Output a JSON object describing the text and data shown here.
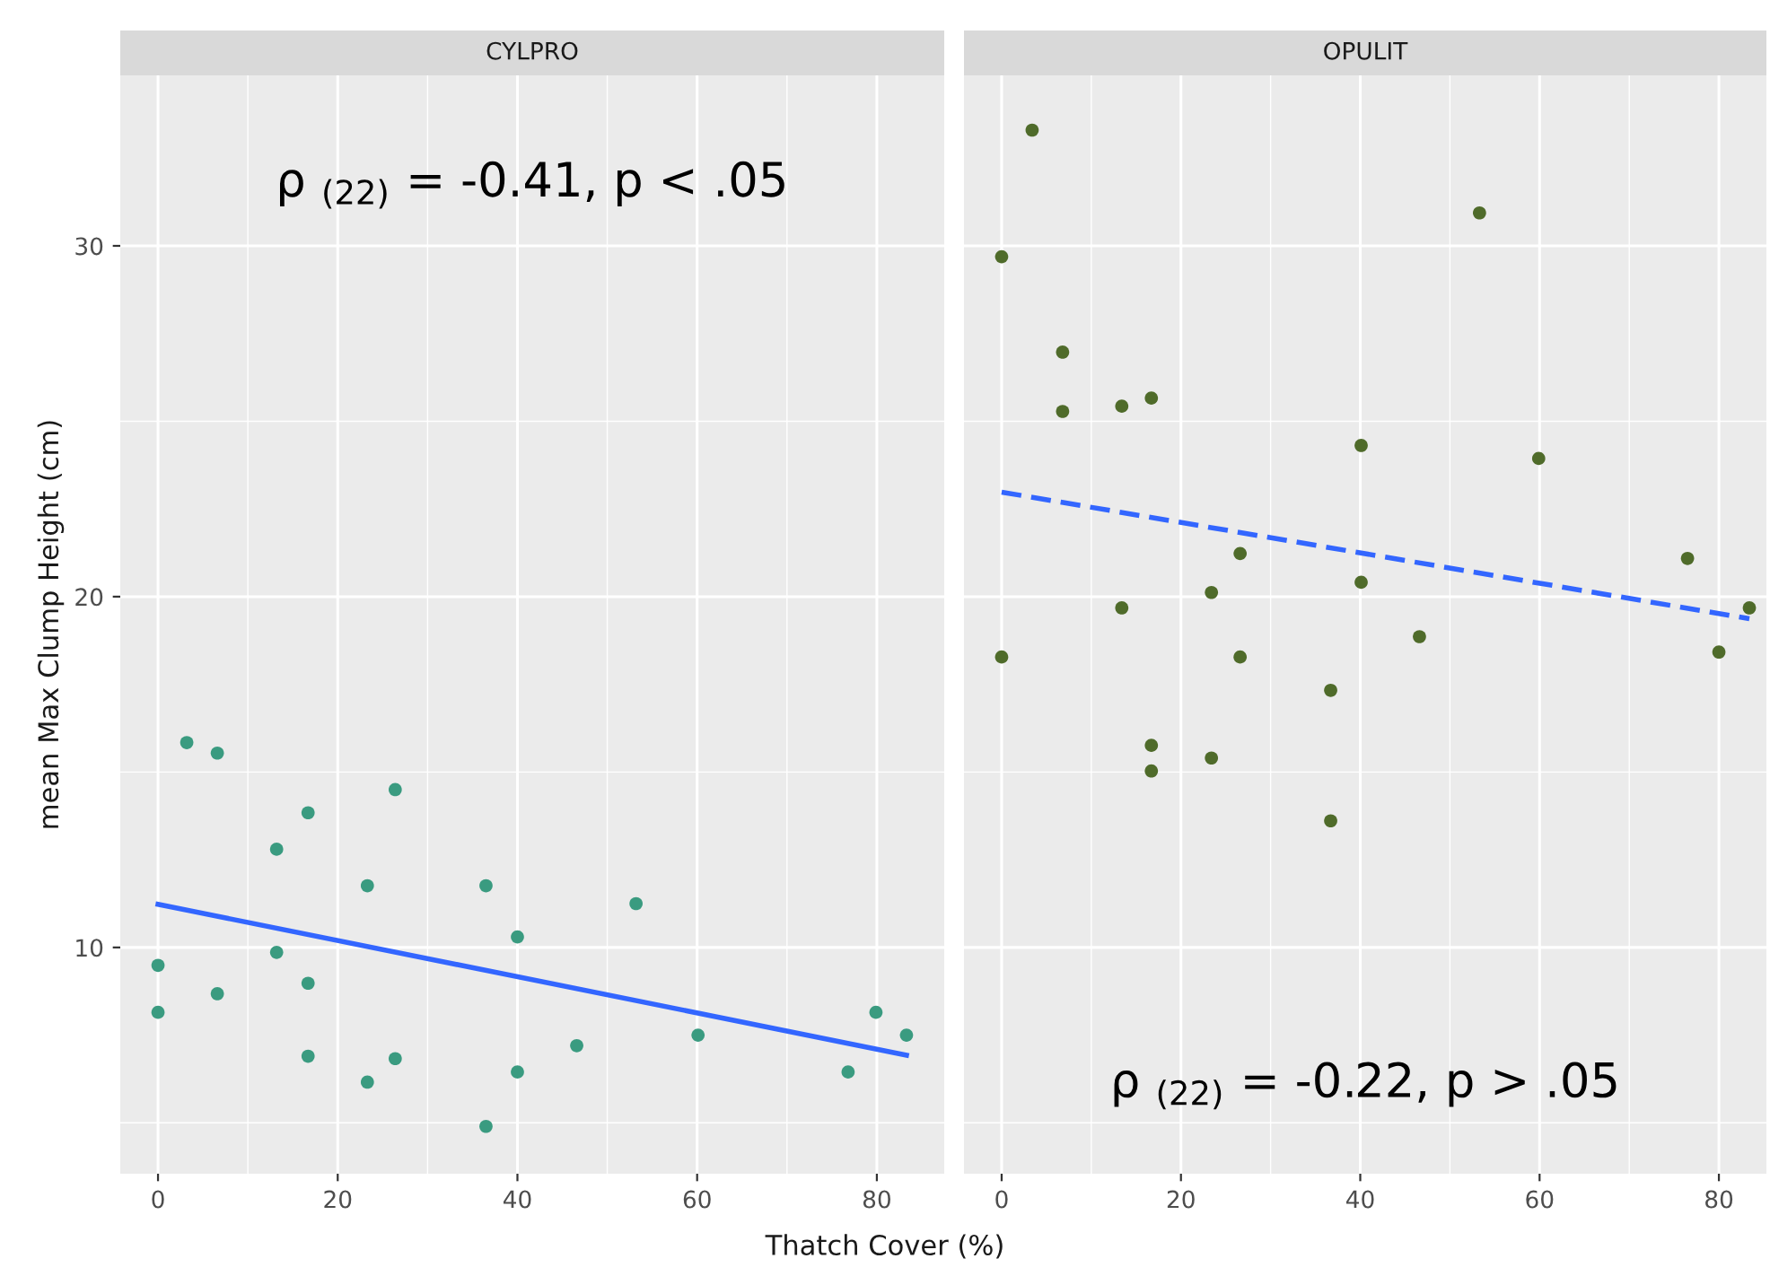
{
  "chart_data": [
    {
      "type": "scatter",
      "title": "CYLPRO",
      "ylabel": "mean Max Clump Height (cm)",
      "xlim": [
        -4.2,
        87.5
      ],
      "xticks": [
        0,
        20,
        40,
        60,
        80
      ],
      "ylim": [
        3.55,
        34.86
      ],
      "yticks": [
        10,
        20,
        30
      ],
      "grid": true,
      "annotations": [
        "ρ $_{(22)}$ = -0.41, p < .05"
      ],
      "series": [
        {
          "marker": "circle",
          "color": "#3a9b80",
          "x": [
            3.2,
            6.6,
            26.4,
            16.7,
            13.2,
            23.3,
            36.5,
            53.2,
            40.0,
            0,
            13.2,
            16.7,
            6.6,
            0,
            79.9,
            83.3,
            60.1,
            46.6,
            16.7,
            26.4,
            76.8,
            40.0,
            23.3,
            36.5
          ],
          "values": [
            15.84,
            15.54,
            14.5,
            13.84,
            12.8,
            11.76,
            11.76,
            11.25,
            10.3,
            9.49,
            9.86,
            8.98,
            8.68,
            8.15,
            8.15,
            7.5,
            7.5,
            7.2,
            6.9,
            6.83,
            6.45,
            6.45,
            6.16,
            4.9
          ]
        },
        {
          "type": "line",
          "color": "#3366ff",
          "line_style": "solid",
          "x": [
            0,
            83.3
          ],
          "values": [
            11.23,
            6.93
          ]
        }
      ]
    },
    {
      "type": "scatter",
      "title": "OPULIT",
      "xlabel": "Thatch Cover (%)",
      "xlim": [
        -4.2,
        85.3
      ],
      "xticks": [
        0,
        20,
        40,
        60,
        80
      ],
      "ylim": [
        3.55,
        34.86
      ],
      "yticks": [
        10,
        20,
        30
      ],
      "grid": true,
      "tick_labels": "x",
      "annotations": [
        "ρ $_{(22)}$ = -0.22, p > .05"
      ],
      "series": [
        {
          "marker": "circle",
          "color": "#4f6b2a",
          "x": [
            3.4,
            53.3,
            0,
            6.8,
            6.8,
            13.4,
            16.7,
            40.1,
            59.9,
            26.6,
            76.5,
            23.4,
            40.1,
            13.4,
            83.4,
            46.6,
            0,
            26.6,
            80.0,
            36.7,
            16.7,
            16.7,
            23.4,
            36.7
          ],
          "values": [
            33.3,
            30.94,
            29.69,
            26.97,
            25.28,
            25.43,
            25.66,
            24.31,
            23.94,
            21.23,
            21.09,
            20.12,
            20.41,
            19.68,
            19.68,
            18.86,
            18.28,
            18.28,
            18.42,
            17.33,
            15.76,
            15.03,
            15.4,
            13.61
          ]
        },
        {
          "type": "line",
          "color": "#3366ff",
          "line_style": "dashed",
          "x": [
            0,
            83.4
          ],
          "values": [
            22.98,
            19.37
          ]
        }
      ]
    }
  ]
}
